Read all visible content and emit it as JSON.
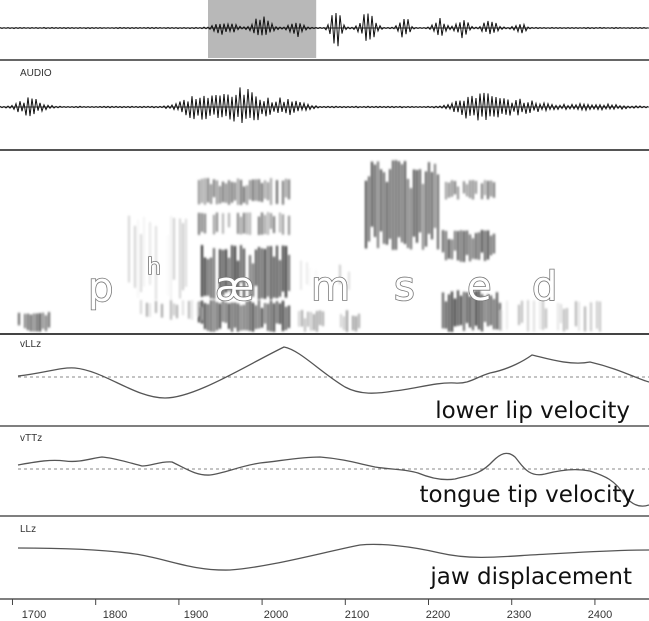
{
  "panels": {
    "audio_label": "AUDIO",
    "lower_lip_label": "vLLz",
    "tongue_tip_label": "vTTz",
    "jaw_label": "LLz"
  },
  "captions": {
    "lower_lip": "lower lip velocity",
    "tongue_tip": "tongue tip velocity",
    "jaw": "jaw displacement"
  },
  "phonemes": [
    "p",
    "h",
    "æ",
    "m",
    "s",
    "e",
    "d"
  ],
  "time_axis": {
    "ticks": [
      "1700",
      "1800",
      "1900",
      "2000",
      "2100",
      "2200",
      "2300",
      "2400"
    ],
    "range": [
      1685,
      2465
    ]
  },
  "overview_selection": {
    "start": 1935,
    "end": 2065
  },
  "colors": {
    "waveform": "#111111",
    "trace": "#555555",
    "baseline": "#888888",
    "selection": "#b8b8b8",
    "frame": "#444444"
  }
}
